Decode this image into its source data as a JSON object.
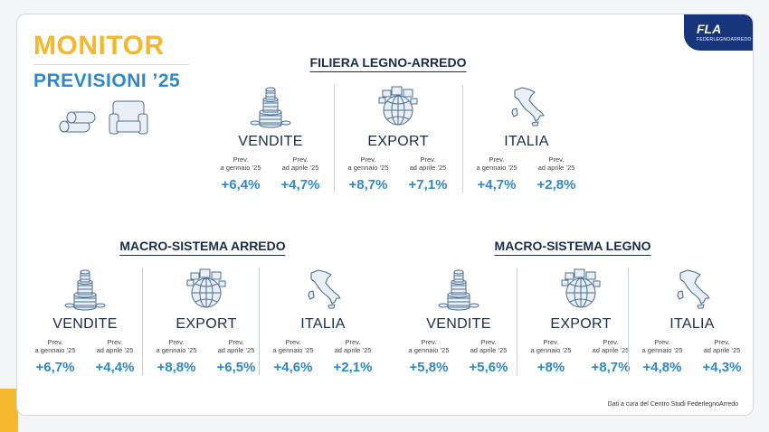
{
  "header": {
    "title_line1": "MONITOR",
    "title_line2": "PREVISIONI ’25"
  },
  "logo": {
    "text": "FLA",
    "subtext": "FEDERLEGNOARREDO"
  },
  "sections": {
    "filiera": {
      "title": "FILIERA LEGNO-ARREDO",
      "groups": [
        {
          "name": "VENDITE",
          "icon": "coins-icon",
          "label_jan_1": "Prev.",
          "label_jan_2": "a gennaio ’25",
          "value_jan": "+6,4%",
          "label_apr_1": "Prev.",
          "label_apr_2": "ad aprile ’25",
          "value_apr": "+4,7%"
        },
        {
          "name": "EXPORT",
          "icon": "globe-boxes-icon",
          "label_jan_1": "Prev.",
          "label_jan_2": "a gennaio ’25",
          "value_jan": "+8,7%",
          "label_apr_1": "Prev.",
          "label_apr_2": "ad aprile ’25",
          "value_apr": "+7,1%"
        },
        {
          "name": "ITALIA",
          "icon": "italy-map-icon",
          "label_jan_1": "Prev.",
          "label_jan_2": "a gennaio ’25",
          "value_jan": "+4,7%",
          "label_apr_1": "Prev.",
          "label_apr_2": "ad aprile ’25",
          "value_apr": "+2,8%"
        }
      ]
    },
    "arredo": {
      "title": "MACRO-SISTEMA ARREDO",
      "groups": [
        {
          "name": "VENDITE",
          "icon": "coins-icon",
          "label_jan_1": "Prev.",
          "label_jan_2": "a gennaio ’25",
          "value_jan": "+6,7%",
          "label_apr_1": "Prev.",
          "label_apr_2": "ad aprile ’25",
          "value_apr": "+4,4%"
        },
        {
          "name": "EXPORT",
          "icon": "globe-boxes-icon",
          "label_jan_1": "Prev.",
          "label_jan_2": "a gennaio ’25",
          "value_jan": "+8,8%",
          "label_apr_1": "Prev.",
          "label_apr_2": "ad aprile ’25",
          "value_apr": "+6,5%"
        },
        {
          "name": "ITALIA",
          "icon": "italy-map-icon",
          "label_jan_1": "Prev.",
          "label_jan_2": "a gennaio ’25",
          "value_jan": "+4,6%",
          "label_apr_1": "Prev.",
          "label_apr_2": "ad aprile ’25",
          "value_apr": "+2,1%"
        }
      ]
    },
    "legno": {
      "title": "MACRO-SISTEMA LEGNO",
      "groups": [
        {
          "name": "VENDITE",
          "icon": "coins-icon",
          "label_jan_1": "Prev.",
          "label_jan_2": "a gennaio ’25",
          "value_jan": "+5,8%",
          "label_apr_1": "Prev.",
          "label_apr_2": "ad aprile ’25",
          "value_apr": "+5,6%"
        },
        {
          "name": "EXPORT",
          "icon": "globe-boxes-icon",
          "label_jan_1": "Prev.",
          "label_jan_2": "a gennaio ’25",
          "value_jan": "+8%",
          "label_apr_1": "Prev.",
          "label_apr_2": "ad aprile ’25",
          "value_apr": "+8,7%"
        },
        {
          "name": "ITALIA",
          "icon": "italy-map-icon",
          "label_jan_1": "Prev.",
          "label_jan_2": "a gennaio ’25",
          "value_jan": "+4,8%",
          "label_apr_1": "Prev.",
          "label_apr_2": "ad aprile ’25",
          "value_apr": "+4,3%"
        }
      ]
    }
  },
  "footer": {
    "note": "Dati a cura del Centro Studi FederlegnoArredo"
  },
  "colors": {
    "accent_yellow": "#f2b830",
    "accent_blue": "#2f88c8",
    "navy": "#17357a",
    "text_dark": "#1b2c4a"
  }
}
